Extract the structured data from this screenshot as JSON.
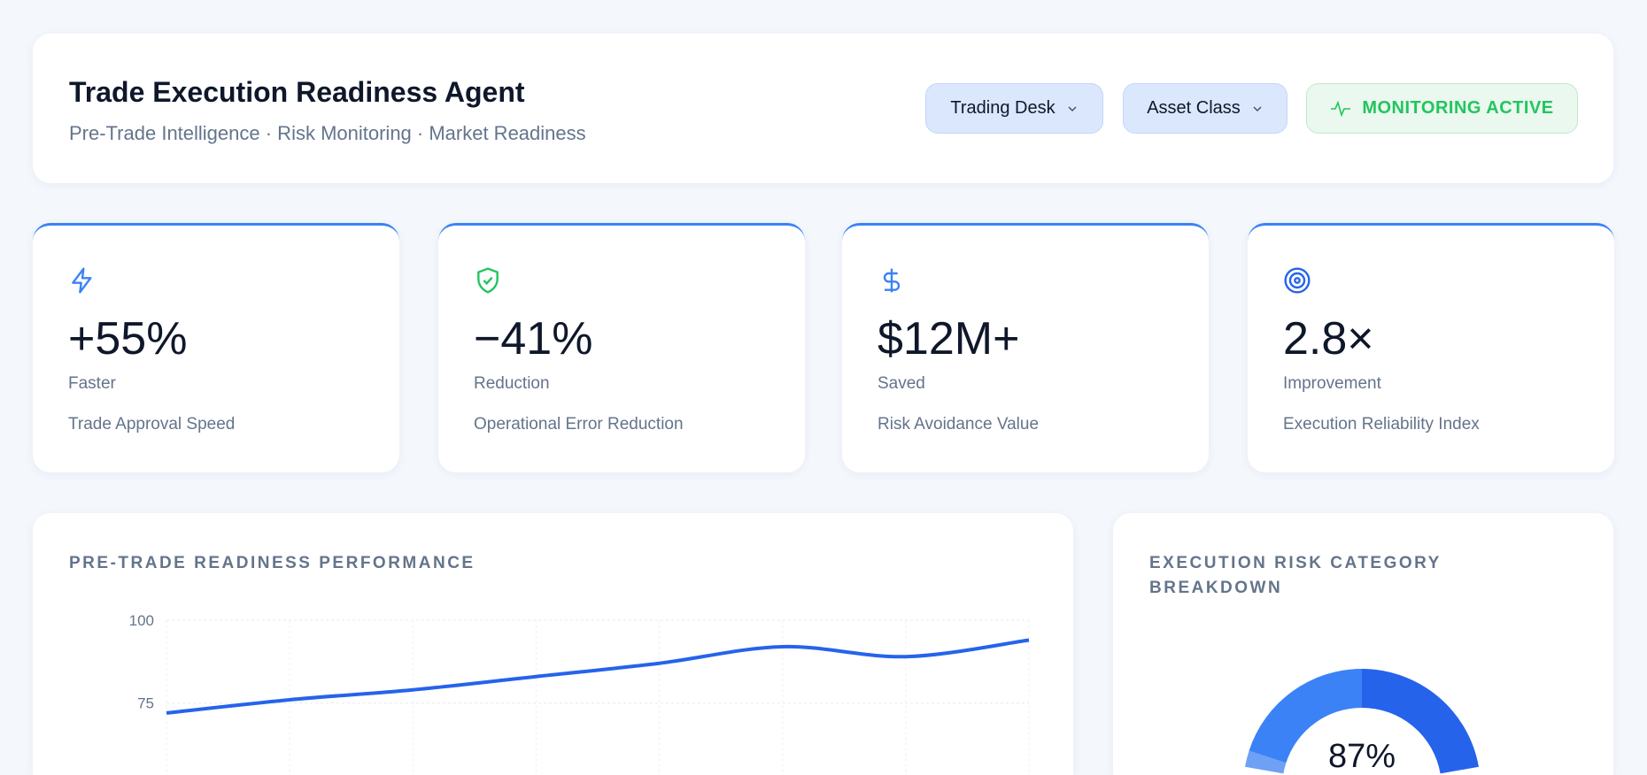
{
  "header": {
    "title": "Trade Execution Readiness Agent",
    "subtitle": "Pre-Trade Intelligence · Risk Monitoring · Market Readiness",
    "trading_desk": "Trading Desk",
    "asset_class": "Asset Class",
    "status": "MONITORING ACTIVE"
  },
  "kpis": [
    {
      "icon": "lightning-icon",
      "value": "+55%",
      "label": "Faster",
      "desc": "Trade Approval Speed",
      "color": "#3b82f6"
    },
    {
      "icon": "shield-check-icon",
      "value": "−41%",
      "label": "Reduction",
      "desc": "Operational Error Reduction",
      "color": "#22c55e"
    },
    {
      "icon": "dollar-icon",
      "value": "$12M+",
      "label": "Saved",
      "desc": "Risk Avoidance Value",
      "color": "#3b82f6"
    },
    {
      "icon": "target-icon",
      "value": "2.8×",
      "label": "Improvement",
      "desc": "Execution Reliability Index",
      "color": "#2563eb"
    }
  ],
  "performance": {
    "title": "PRE-TRADE READINESS PERFORMANCE"
  },
  "breakdown": {
    "title": "EXECUTION RISK CATEGORY BREAKDOWN",
    "center": "87%"
  },
  "chart_data": [
    {
      "type": "line",
      "title": "PRE-TRADE READINESS PERFORMANCE",
      "y_ticks": [
        "100",
        "75"
      ],
      "ylim_top": 100,
      "grid": true,
      "color": "#2563eb",
      "series": [
        {
          "values": [
            72,
            76,
            79,
            83,
            87,
            92,
            89,
            94
          ]
        }
      ]
    },
    {
      "type": "pie",
      "donut": true,
      "center_label": "87%",
      "values": [
        50,
        20,
        10,
        20
      ],
      "colors": [
        "#2563eb",
        "#93b8f8",
        "#6ea0f5",
        "#3b82f6"
      ]
    }
  ]
}
